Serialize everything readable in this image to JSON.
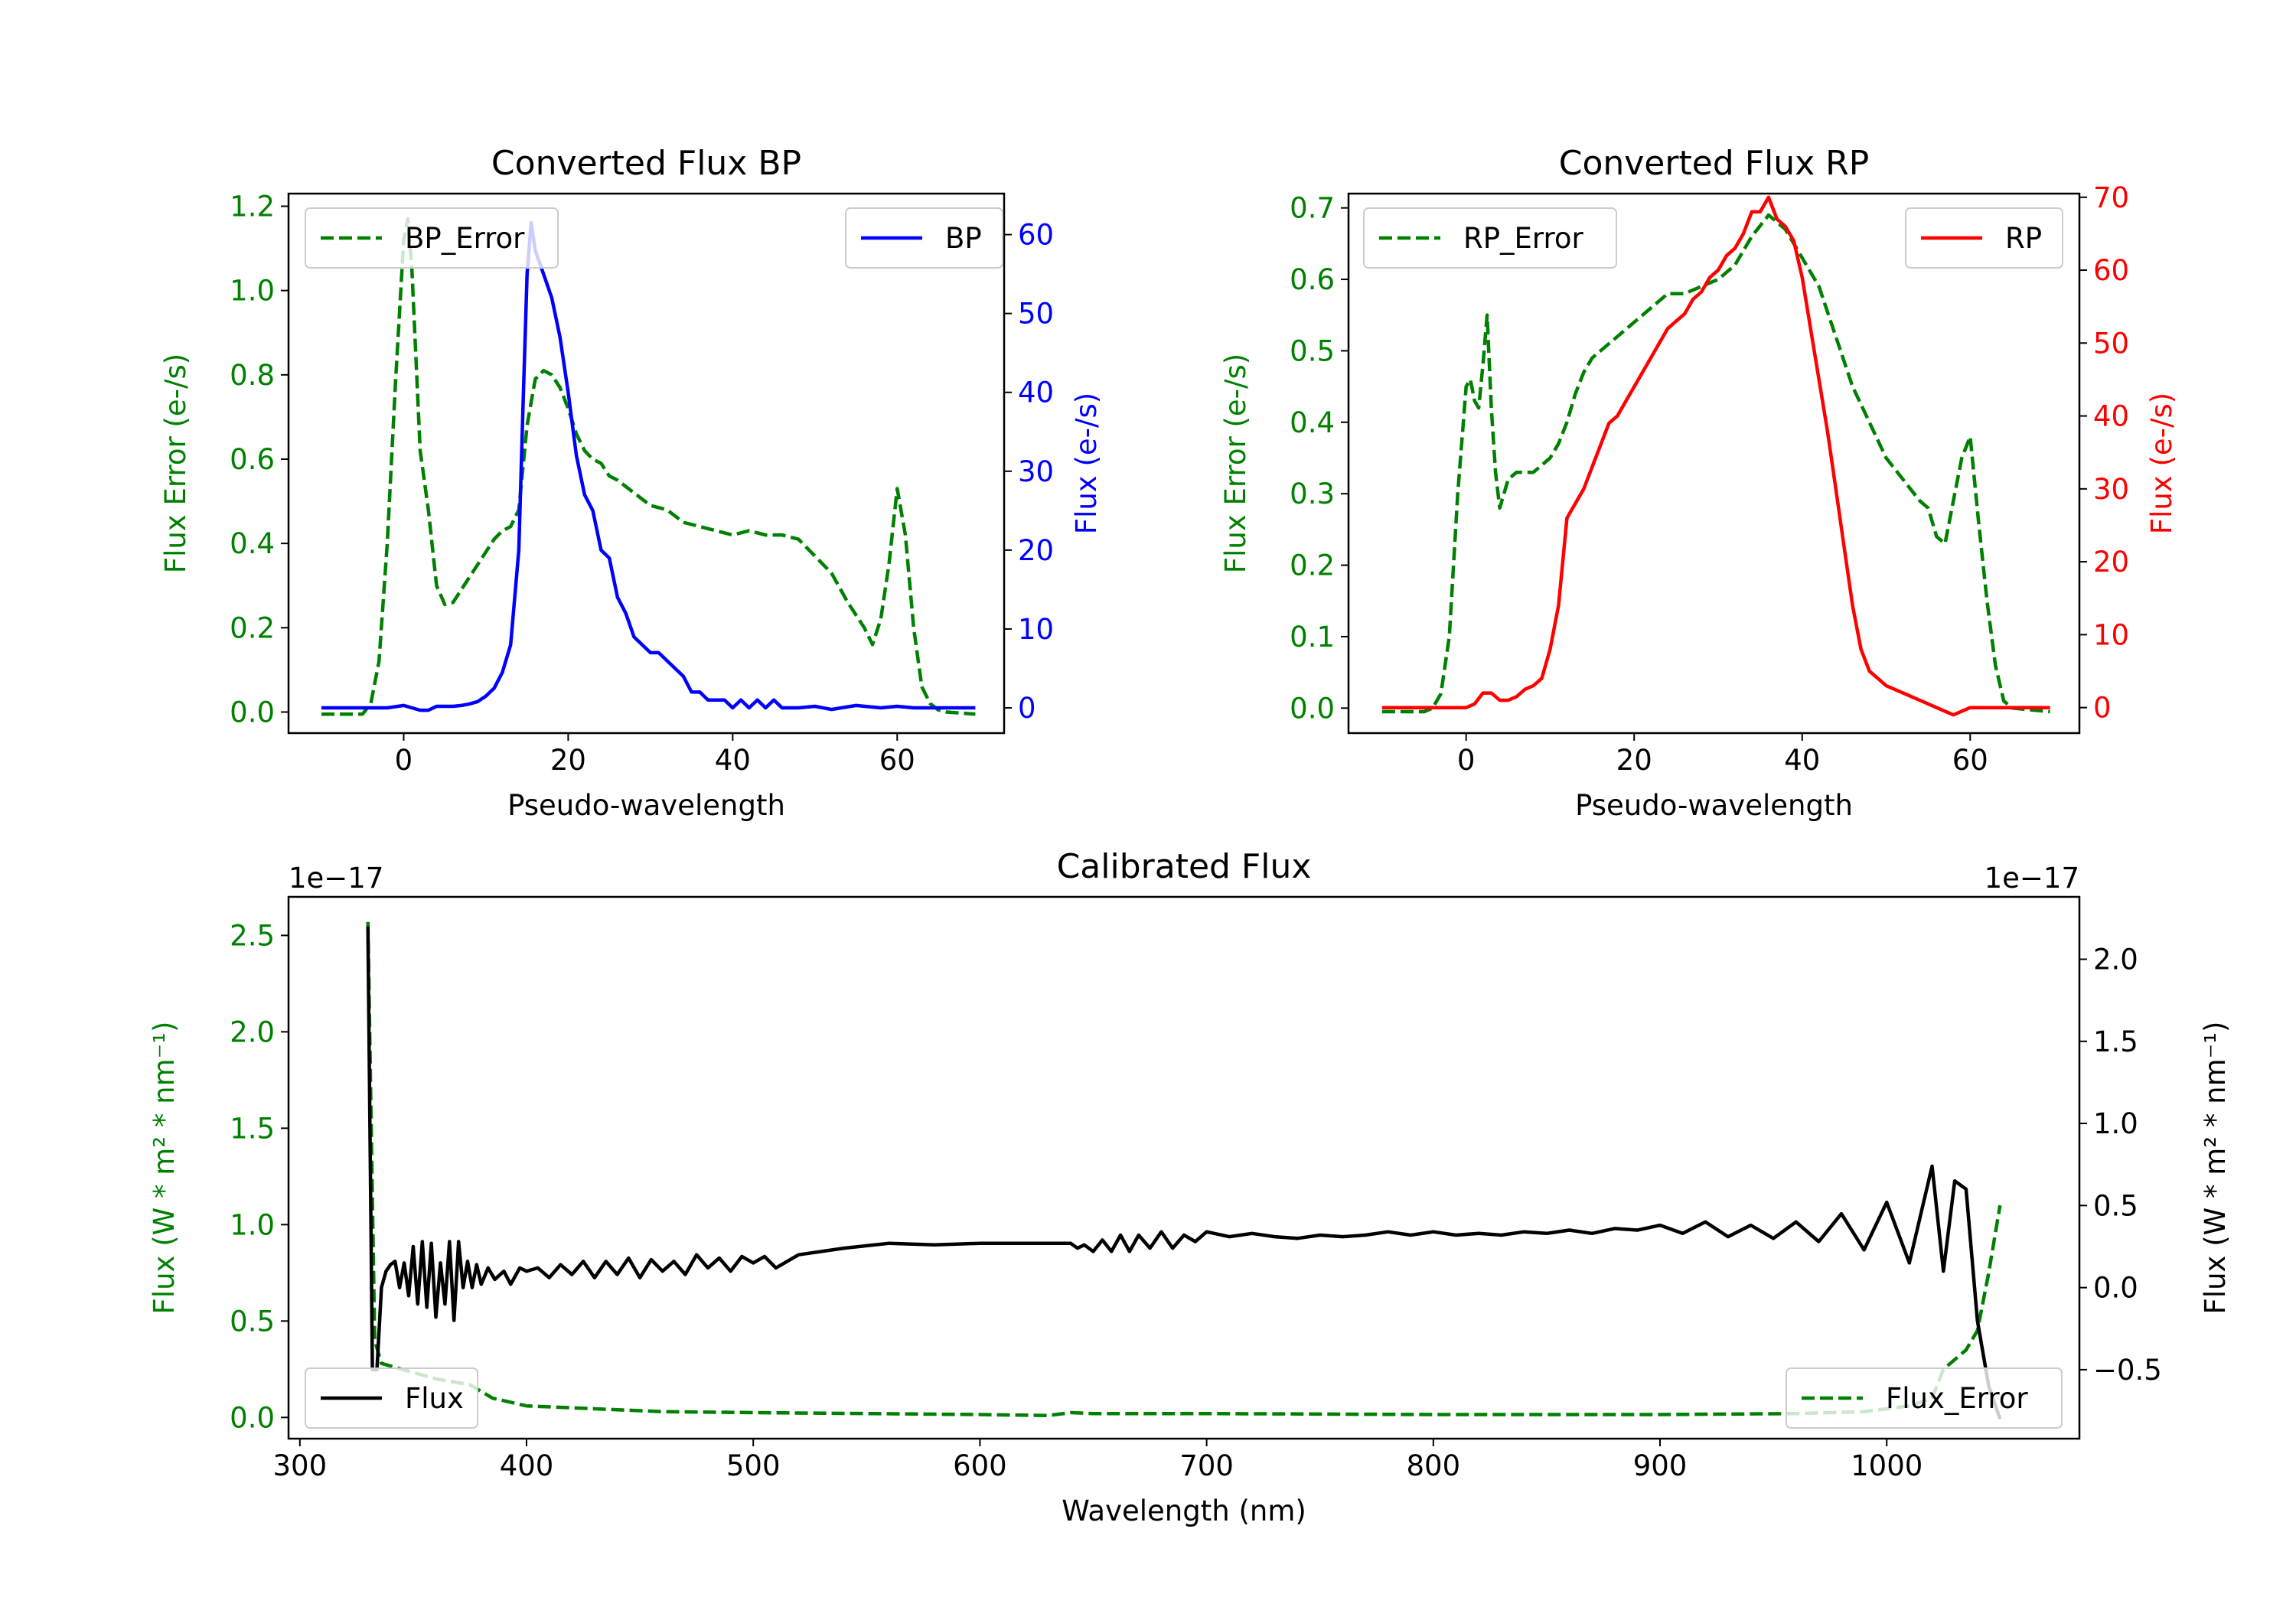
{
  "chart_data": [
    {
      "type": "line",
      "title": "Converted Flux BP",
      "xlabel": "Pseudo-wavelength",
      "ylabel_left": "Flux Error (e-/s)",
      "ylabel_right": "Flux (e-/s)",
      "xlim": [
        -14,
        73
      ],
      "ylim_left": [
        -0.05,
        1.23
      ],
      "ylim_right": [
        -3.2,
        65.2
      ],
      "xticks": [
        0,
        20,
        40,
        60
      ],
      "yticks_left": [
        0.0,
        0.2,
        0.4,
        0.6,
        0.8,
        1.0,
        1.2
      ],
      "yticks_right": [
        0,
        10,
        20,
        30,
        40,
        50,
        60
      ],
      "legend": {
        "left": "BP_Error",
        "right": "BP"
      },
      "colors": {
        "error": "#008000",
        "flux": "#0000ff",
        "left_axis": "#008000",
        "right_axis": "#0000ff"
      },
      "series": [
        {
          "name": "BP_Error",
          "axis": "left",
          "style": "dashed",
          "x": [
            -10,
            -5,
            -4,
            -3,
            -2,
            -1,
            0,
            0.5,
            1,
            2,
            3,
            4,
            5,
            6,
            7,
            8,
            9,
            10,
            11,
            12,
            13,
            14,
            15,
            16,
            17,
            18,
            19,
            20,
            21,
            22,
            23,
            24,
            25,
            26,
            28,
            30,
            32,
            34,
            36,
            38,
            40,
            42,
            44,
            46,
            48,
            50,
            52,
            54,
            56,
            57,
            58,
            59,
            60,
            61,
            62,
            63,
            64,
            65,
            66,
            69.5
          ],
          "y": [
            -0.005,
            -0.005,
            0.02,
            0.12,
            0.4,
            0.78,
            1.12,
            1.17,
            1.05,
            0.62,
            0.48,
            0.3,
            0.255,
            0.26,
            0.29,
            0.32,
            0.35,
            0.38,
            0.41,
            0.43,
            0.44,
            0.48,
            0.68,
            0.79,
            0.81,
            0.8,
            0.77,
            0.72,
            0.66,
            0.62,
            0.6,
            0.59,
            0.56,
            0.55,
            0.52,
            0.49,
            0.48,
            0.45,
            0.44,
            0.43,
            0.42,
            0.43,
            0.42,
            0.42,
            0.41,
            0.37,
            0.33,
            0.26,
            0.2,
            0.16,
            0.22,
            0.35,
            0.53,
            0.42,
            0.2,
            0.06,
            0.02,
            0.005,
            0.0,
            -0.005
          ]
        },
        {
          "name": "BP",
          "axis": "right",
          "style": "solid",
          "x": [
            -10,
            -5,
            -2,
            0,
            2,
            3,
            4,
            6,
            7,
            8,
            9,
            10,
            11,
            12,
            13,
            14,
            14.5,
            15,
            15.5,
            16,
            17,
            18,
            19,
            20,
            21,
            22,
            23,
            24,
            25,
            26,
            27,
            28,
            29,
            30,
            31,
            32,
            33,
            34,
            35,
            36,
            37,
            38,
            39,
            40,
            41,
            42,
            43,
            44,
            45,
            46,
            47,
            48,
            50,
            52,
            55,
            58,
            60,
            62,
            65,
            69.5
          ],
          "y": [
            0.0,
            0.0,
            0.0,
            0.3,
            -0.3,
            -0.3,
            0.2,
            0.2,
            0.3,
            0.5,
            0.8,
            1.5,
            2.5,
            4.5,
            8.0,
            20.0,
            38.0,
            55.0,
            61.5,
            58.0,
            55.0,
            52.0,
            47.0,
            40.0,
            32.0,
            27.0,
            25.0,
            20.0,
            19.0,
            14.0,
            12.0,
            9.0,
            8.0,
            7.0,
            7.0,
            6.0,
            5.0,
            4.0,
            2.0,
            2.0,
            1.0,
            1.0,
            1.0,
            0.0,
            1.0,
            0.0,
            1.0,
            0.0,
            1.0,
            0.0,
            0.0,
            0.0,
            0.2,
            -0.2,
            0.3,
            0.0,
            0.2,
            0.0,
            0.0,
            0.0
          ]
        }
      ]
    },
    {
      "type": "line",
      "title": "Converted Flux RP",
      "xlabel": "Pseudo-wavelength",
      "ylabel_left": "Flux Error (e-/s)",
      "ylabel_right": "Flux (e-/s)",
      "xlim": [
        -14,
        73
      ],
      "ylim_left": [
        -0.035,
        0.72
      ],
      "ylim_right": [
        -3.5,
        70.5
      ],
      "xticks": [
        0,
        20,
        40,
        60
      ],
      "yticks_left": [
        0.0,
        0.1,
        0.2,
        0.3,
        0.4,
        0.5,
        0.6,
        0.7
      ],
      "yticks_right": [
        0,
        10,
        20,
        30,
        40,
        50,
        60,
        70
      ],
      "legend": {
        "left": "RP_Error",
        "right": "RP"
      },
      "colors": {
        "error": "#008000",
        "flux": "#ff0000",
        "left_axis": "#008000",
        "right_axis": "#ff0000"
      },
      "series": [
        {
          "name": "RP_Error",
          "axis": "left",
          "style": "dashed",
          "x": [
            -10,
            -5,
            -4,
            -3,
            -2,
            -1,
            0,
            0.5,
            1,
            1.5,
            2,
            2.5,
            3,
            3.5,
            4,
            5,
            6,
            7,
            8,
            9,
            10,
            11,
            12,
            13,
            14,
            15,
            16,
            18,
            20,
            22,
            24,
            26,
            28,
            30,
            32,
            34,
            36,
            38,
            40,
            42,
            44,
            46,
            48,
            50,
            52,
            54,
            55,
            56,
            57,
            58,
            59,
            60,
            61,
            62,
            63,
            64,
            65,
            69.5
          ],
          "y": [
            -0.005,
            -0.005,
            0.0,
            0.02,
            0.1,
            0.3,
            0.45,
            0.46,
            0.43,
            0.42,
            0.48,
            0.55,
            0.42,
            0.33,
            0.28,
            0.32,
            0.33,
            0.33,
            0.33,
            0.34,
            0.35,
            0.37,
            0.4,
            0.44,
            0.47,
            0.49,
            0.5,
            0.52,
            0.54,
            0.56,
            0.58,
            0.58,
            0.59,
            0.6,
            0.62,
            0.66,
            0.69,
            0.67,
            0.63,
            0.59,
            0.52,
            0.45,
            0.4,
            0.35,
            0.32,
            0.29,
            0.28,
            0.24,
            0.23,
            0.29,
            0.35,
            0.38,
            0.26,
            0.15,
            0.06,
            0.01,
            0.0,
            -0.005
          ]
        },
        {
          "name": "RP",
          "axis": "right",
          "style": "solid",
          "x": [
            -10,
            -5,
            -2,
            0,
            1,
            2,
            3,
            4,
            5,
            6,
            7,
            8,
            9,
            10,
            11,
            12,
            13,
            14,
            15,
            16,
            17,
            18,
            19,
            20,
            21,
            22,
            23,
            24,
            25,
            26,
            27,
            28,
            29,
            30,
            31,
            32,
            33,
            34,
            35,
            36,
            37,
            38,
            39,
            40,
            41,
            42,
            43,
            44,
            45,
            46,
            47,
            48,
            49,
            50,
            52,
            54,
            56,
            58,
            60,
            62,
            65,
            69.5
          ],
          "y": [
            0.0,
            0.0,
            0.0,
            0.0,
            0.5,
            2.0,
            2.0,
            1.0,
            1.0,
            1.5,
            2.5,
            3.0,
            4.0,
            8.0,
            14.0,
            26.0,
            28.0,
            30.0,
            33.0,
            36.0,
            39.0,
            40.0,
            42.0,
            44.0,
            46.0,
            48.0,
            50.0,
            52.0,
            53.0,
            54.0,
            56.0,
            57.0,
            59.0,
            60.0,
            62.0,
            63.0,
            65.0,
            68.0,
            68.0,
            70.0,
            67.0,
            66.0,
            64.0,
            59.0,
            52.0,
            45.0,
            38.0,
            30.0,
            22.0,
            14.0,
            8.0,
            5.0,
            4.0,
            3.0,
            2.0,
            1.0,
            0.0,
            -1.0,
            0.0,
            0.0,
            0.0,
            0.0
          ]
        }
      ]
    },
    {
      "type": "line",
      "title": "Calibrated Flux",
      "xlabel": "Wavelength (nm)",
      "ylabel_left": "Flux (W * m² * nm⁻¹)",
      "ylabel_right": "Flux (W * m² * nm⁻¹)",
      "offset_left": "1e−17",
      "offset_right": "1e−17",
      "xlim": [
        295,
        1085
      ],
      "ylim_left": [
        -0.11,
        2.7
      ],
      "ylim_right": [
        -0.92,
        2.38
      ],
      "xticks": [
        300,
        400,
        500,
        600,
        700,
        800,
        900,
        1000
      ],
      "yticks_left": [
        0.0,
        0.5,
        1.0,
        1.5,
        2.0,
        2.5
      ],
      "yticks_left_labels": [
        "0.0",
        "0.5",
        "1.0",
        "1.5",
        "2.0",
        "2.5"
      ],
      "yticks_right": [
        -0.5,
        0.0,
        0.5,
        1.0,
        1.5,
        2.0
      ],
      "yticks_right_labels": [
        "−0.5",
        "0.0",
        "0.5",
        "1.0",
        "1.5",
        "2.0"
      ],
      "legend": {
        "left": "Flux",
        "right": "Flux_Error"
      },
      "colors": {
        "error": "#008000",
        "flux": "#000000",
        "left_axis": "#008000",
        "right_axis": "#000000"
      },
      "series": [
        {
          "name": "Flux_Error",
          "axis": "left",
          "style": "dashed",
          "x": [
            330,
            333,
            336,
            345,
            360,
            375,
            385,
            400,
            420,
            440,
            460,
            500,
            550,
            600,
            630,
            640,
            650,
            700,
            800,
            900,
            960,
            990,
            1010,
            1020,
            1025,
            1030,
            1035,
            1040,
            1045,
            1050
          ],
          "y": [
            2.57,
            0.4,
            0.28,
            0.25,
            0.2,
            0.17,
            0.1,
            0.06,
            0.05,
            0.04,
            0.03,
            0.025,
            0.02,
            0.015,
            0.01,
            0.025,
            0.02,
            0.02,
            0.015,
            0.015,
            0.02,
            0.03,
            0.06,
            0.1,
            0.25,
            0.3,
            0.35,
            0.45,
            0.75,
            1.1
          ]
        },
        {
          "name": "Flux",
          "axis": "right",
          "style": "solid",
          "x": [
            330,
            332,
            334,
            336,
            338,
            340,
            342,
            344,
            346,
            348,
            350,
            352,
            354,
            356,
            358,
            360,
            362,
            364,
            366,
            368,
            370,
            372,
            374,
            376,
            378,
            380,
            383,
            386,
            390,
            393,
            397,
            400,
            405,
            410,
            415,
            420,
            425,
            430,
            435,
            440,
            445,
            450,
            455,
            460,
            465,
            470,
            475,
            480,
            485,
            490,
            495,
            500,
            505,
            510,
            520,
            540,
            560,
            580,
            600,
            620,
            640,
            643,
            646,
            650,
            654,
            658,
            662,
            666,
            670,
            675,
            680,
            685,
            690,
            695,
            700,
            710,
            720,
            730,
            740,
            750,
            760,
            770,
            780,
            790,
            800,
            810,
            820,
            830,
            840,
            850,
            860,
            870,
            880,
            890,
            900,
            910,
            920,
            930,
            940,
            950,
            960,
            970,
            980,
            990,
            1000,
            1010,
            1020,
            1025,
            1030,
            1035,
            1040,
            1045,
            1050
          ],
          "y": [
            2.2,
            -0.5,
            -0.5,
            0.0,
            0.1,
            0.14,
            0.16,
            0.0,
            0.15,
            -0.05,
            0.25,
            -0.1,
            0.28,
            -0.12,
            0.27,
            -0.18,
            0.15,
            -0.1,
            0.28,
            -0.2,
            0.28,
            0.0,
            0.16,
            0.0,
            0.14,
            0.02,
            0.12,
            0.05,
            0.1,
            0.02,
            0.12,
            0.1,
            0.12,
            0.06,
            0.14,
            0.08,
            0.16,
            0.06,
            0.16,
            0.08,
            0.18,
            0.06,
            0.17,
            0.1,
            0.16,
            0.08,
            0.2,
            0.12,
            0.18,
            0.1,
            0.19,
            0.15,
            0.19,
            0.12,
            0.2,
            0.24,
            0.27,
            0.26,
            0.27,
            0.27,
            0.27,
            0.24,
            0.26,
            0.22,
            0.29,
            0.22,
            0.32,
            0.22,
            0.32,
            0.24,
            0.34,
            0.24,
            0.32,
            0.28,
            0.34,
            0.31,
            0.33,
            0.31,
            0.3,
            0.32,
            0.31,
            0.32,
            0.34,
            0.32,
            0.34,
            0.32,
            0.33,
            0.32,
            0.34,
            0.33,
            0.35,
            0.33,
            0.36,
            0.35,
            0.38,
            0.33,
            0.4,
            0.31,
            0.38,
            0.3,
            0.4,
            0.28,
            0.45,
            0.23,
            0.52,
            0.15,
            0.74,
            0.1,
            0.65,
            0.6,
            -0.2,
            -0.6,
            -0.8
          ]
        }
      ]
    }
  ]
}
